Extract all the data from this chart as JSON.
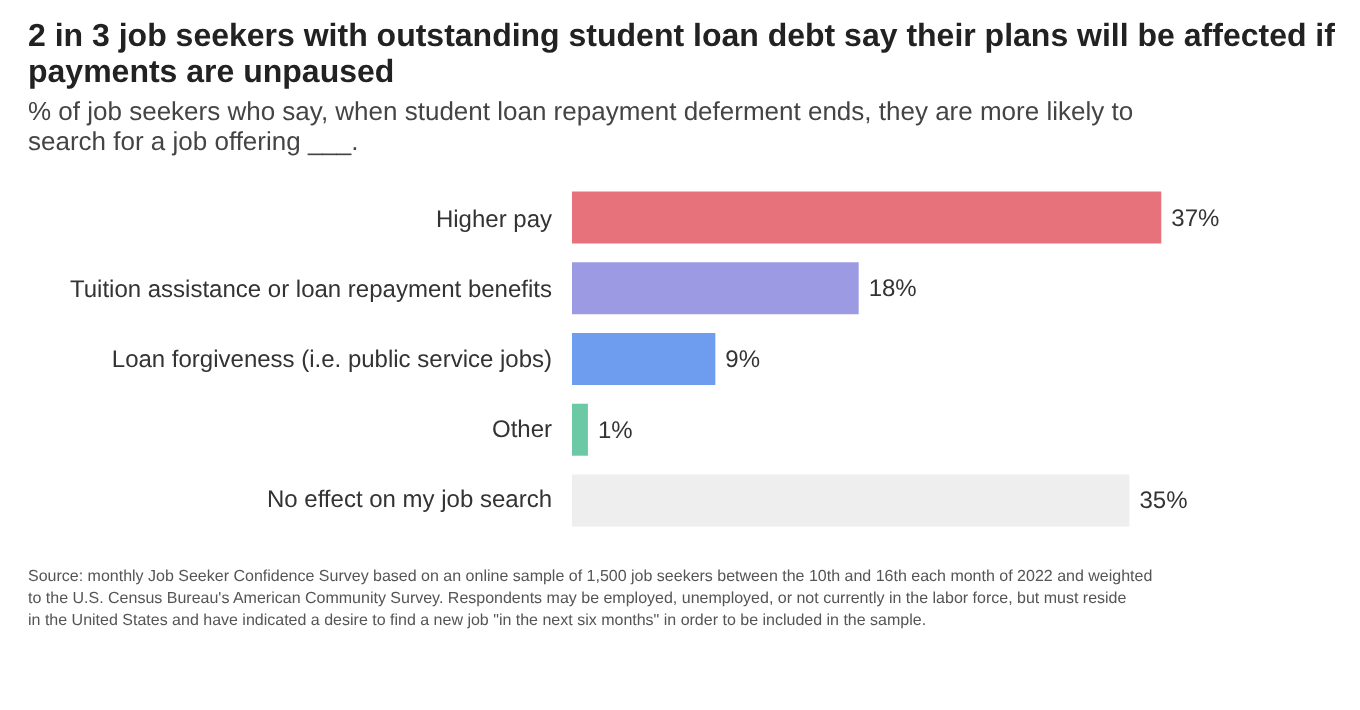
{
  "chart_data": {
    "type": "bar",
    "orientation": "horizontal",
    "title": "2 in 3 job seekers with outstanding student loan debt say their plans will be affected if payments are unpaused",
    "subtitle": "% of job seekers who say, when student loan repayment deferment ends, they are more likely to search for a job offering ___.",
    "categories": [
      "Higher pay",
      "Tuition assistance or loan repayment benefits",
      "Loan forgiveness (i.e. public service jobs)",
      "Other",
      "No effect on my job search"
    ],
    "values": [
      37,
      18,
      9,
      1,
      35
    ],
    "colors": [
      "#e8727c",
      "#9b9ae3",
      "#6e9df0",
      "#6cc9a6",
      "#eeeeee"
    ],
    "value_labels": [
      "37%",
      "18%",
      "9%",
      "1%",
      "35%"
    ],
    "annotations": [
      "Source: monthly Job Seeker Confidence Survey based on an online sample of 1,500 job seekers between the 10th and 16th each month of 2022 and weighted to the U.S. Census Bureau's American Community Survey. Respondents may be employed, unemployed, or not currently in the labor force, but must reside in the United States and have indicated a desire to find a new job \"in the next six months\" in order to be included in the sample."
    ]
  }
}
